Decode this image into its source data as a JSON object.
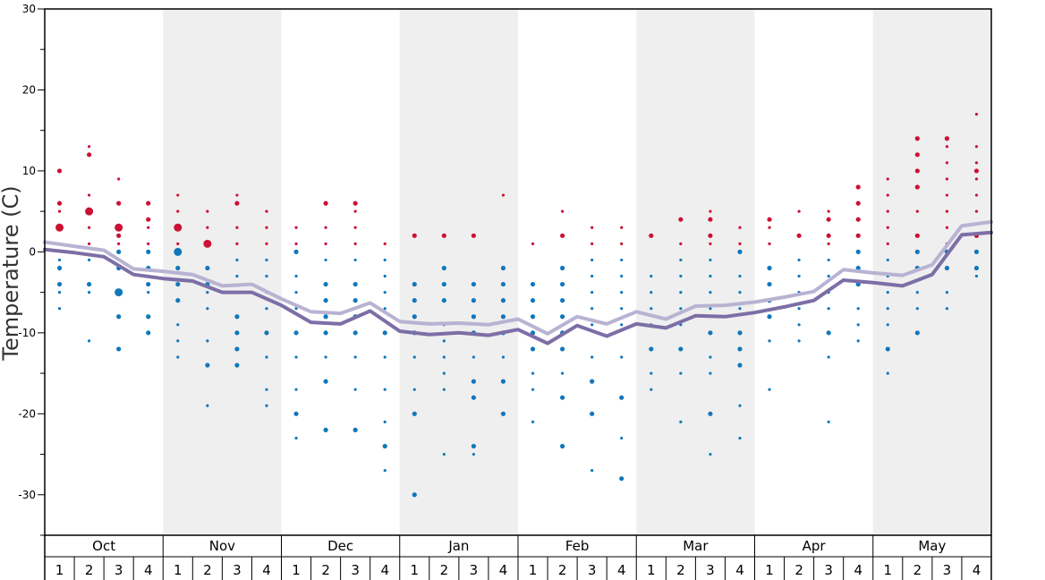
{
  "chart_data": {
    "type": "scatter",
    "ylabel": "Temperature (C)",
    "ylim": [
      -35,
      30
    ],
    "yticks": [
      30,
      20,
      10,
      0,
      -10,
      -20,
      -30
    ],
    "ytick_labels": [
      "30",
      "20",
      "10",
      "0",
      "-10",
      "-20",
      "-30"
    ],
    "months": [
      "Oct",
      "Nov",
      "Dec",
      "Jan",
      "Feb",
      "Mar",
      "Apr",
      "May"
    ],
    "weeks": [
      "1",
      "2",
      "3",
      "4"
    ],
    "shaded_months": [
      "Nov",
      "Jan",
      "Mar",
      "May"
    ],
    "colors": {
      "warm": "#cc1133",
      "cold": "#1177bb",
      "mean_high": "#b8b3d3",
      "mean_low": "#7c6ea6",
      "shade": "#efefef"
    },
    "series": [
      {
        "name": "mean_high",
        "values": [
          1.2,
          0.7,
          0.2,
          -2.1,
          -2.4,
          -2.8,
          -4.2,
          -4.0,
          -5.8,
          -7.4,
          -7.6,
          -6.3,
          -8.6,
          -8.9,
          -8.8,
          -9.0,
          -8.3,
          -10.1,
          -8.0,
          -8.9,
          -7.4,
          -8.3,
          -6.7,
          -6.6,
          -6.2,
          -5.6,
          -4.9,
          -2.2,
          -2.6,
          -2.9,
          -1.6,
          3.2,
          3.7
        ]
      },
      {
        "name": "mean_low",
        "values": [
          0.3,
          -0.1,
          -0.6,
          -2.8,
          -3.3,
          -3.6,
          -5.0,
          -5.0,
          -6.6,
          -8.7,
          -8.9,
          -7.3,
          -9.8,
          -10.2,
          -10.0,
          -10.3,
          -9.6,
          -11.3,
          -9.1,
          -10.4,
          -8.9,
          -9.4,
          -7.9,
          -8.0,
          -7.5,
          -6.8,
          -6.0,
          -3.5,
          -3.8,
          -4.2,
          -2.8,
          2.1,
          2.4
        ]
      },
      {
        "name": "observations",
        "columns": [
          {
            "warm": [
              1,
              3,
              3,
              5,
              6,
              10
            ],
            "cold": [
              -1,
              -2,
              -4,
              -5,
              -7
            ]
          },
          {
            "warm": [
              1,
              3,
              5,
              5,
              7,
              12,
              13
            ],
            "cold": [
              -1,
              -4,
              -5,
              -11
            ]
          },
          {
            "warm": [
              1,
              2,
              3,
              3,
              6,
              9
            ],
            "cold": [
              0,
              -2,
              -5,
              -5,
              -8,
              -12
            ]
          },
          {
            "warm": [
              1,
              3,
              4,
              6
            ],
            "cold": [
              0,
              -2,
              -3,
              -4,
              -5,
              -8,
              -10
            ]
          },
          {
            "warm": [
              1,
              3,
              3,
              5,
              7
            ],
            "cold": [
              0,
              0,
              -2,
              -4,
              -6,
              -9,
              -11,
              -13
            ]
          },
          {
            "warm": [
              1,
              1,
              3,
              5
            ],
            "cold": [
              -2,
              -4,
              -5,
              -7,
              -11,
              -14,
              -19
            ]
          },
          {
            "warm": [
              1,
              3,
              6,
              7
            ],
            "cold": [
              -1,
              -3,
              -5,
              -8,
              -10,
              -12,
              -14
            ]
          },
          {
            "warm": [
              1,
              3,
              5
            ],
            "cold": [
              -1,
              -3,
              -5,
              -7,
              -10,
              -13,
              -17,
              -19
            ]
          },
          {
            "warm": [
              1,
              3
            ],
            "cold": [
              0,
              -3,
              -5,
              -7,
              -10,
              -13,
              -17,
              -20,
              -23
            ]
          },
          {
            "warm": [
              1,
              3,
              6
            ],
            "cold": [
              -1,
              -4,
              -6,
              -8,
              -10,
              -13,
              -16,
              -22
            ]
          },
          {
            "warm": [
              1,
              3,
              5,
              6
            ],
            "cold": [
              -1,
              -4,
              -6,
              -8,
              -10,
              -13,
              -17,
              -22
            ]
          },
          {
            "warm": [
              1
            ],
            "cold": [
              -1,
              -3,
              -5,
              -7,
              -10,
              -13,
              -17,
              -21,
              -24,
              -27
            ]
          },
          {
            "warm": [
              2
            ],
            "cold": [
              -4,
              -6,
              -8,
              -10,
              -13,
              -17,
              -20,
              -30
            ]
          },
          {
            "warm": [
              2
            ],
            "cold": [
              -2,
              -4,
              -6,
              -9,
              -11,
              -13,
              -15,
              -17,
              -25
            ]
          },
          {
            "warm": [
              2
            ],
            "cold": [
              -4,
              -6,
              -8,
              -10,
              -13,
              -16,
              -18,
              -24,
              -25
            ]
          },
          {
            "warm": [
              7
            ],
            "cold": [
              -2,
              -4,
              -6,
              -8,
              -10,
              -13,
              -16,
              -20
            ]
          },
          {
            "warm": [
              1
            ],
            "cold": [
              -4,
              -6,
              -8,
              -10,
              -12,
              -15,
              -17,
              -21
            ]
          },
          {
            "warm": [
              2,
              5
            ],
            "cold": [
              -2,
              -4,
              -6,
              -8,
              -10,
              -12,
              -15,
              -18,
              -24
            ]
          },
          {
            "warm": [
              1,
              3
            ],
            "cold": [
              -1,
              -3,
              -5,
              -7,
              -9,
              -13,
              -16,
              -20,
              -27
            ]
          },
          {
            "warm": [
              1,
              3
            ],
            "cold": [
              -1,
              -3,
              -5,
              -7,
              -9,
              -13,
              -18,
              -23,
              -28
            ]
          },
          {
            "warm": [
              2
            ],
            "cold": [
              -3,
              -5,
              -7,
              -9,
              -12,
              -15,
              -17
            ]
          },
          {
            "warm": [
              1,
              4
            ],
            "cold": [
              -1,
              -3,
              -5,
              -7,
              -9,
              -12,
              -15,
              -21
            ]
          },
          {
            "warm": [
              1,
              2,
              4,
              5
            ],
            "cold": [
              -1,
              -3,
              -5,
              -7,
              -10,
              -13,
              -15,
              -20,
              -25
            ]
          },
          {
            "warm": [
              1,
              3
            ],
            "cold": [
              0,
              -3,
              -5,
              -7,
              -10,
              -12,
              -14,
              -19,
              -23
            ]
          },
          {
            "warm": [
              1,
              3,
              4
            ],
            "cold": [
              -2,
              -4,
              -6,
              -8,
              -11,
              -17
            ]
          },
          {
            "warm": [
              2,
              5
            ],
            "cold": [
              -1,
              -3,
              -5,
              -7,
              -9,
              -11
            ]
          },
          {
            "warm": [
              1,
              2,
              4,
              5
            ],
            "cold": [
              -1,
              -3,
              -5,
              -7,
              -10,
              -13,
              -21
            ]
          },
          {
            "warm": [
              2,
              4,
              6,
              8
            ],
            "cold": [
              0,
              -2,
              -4,
              -7,
              -9,
              -11
            ]
          },
          {
            "warm": [
              1,
              3,
              5,
              7,
              9
            ],
            "cold": [
              -1,
              -3,
              -5,
              -7,
              -9,
              -12,
              -15
            ]
          },
          {
            "warm": [
              2,
              5,
              8,
              10,
              12,
              14
            ],
            "cold": [
              0,
              -2,
              -5,
              -7,
              -10
            ]
          },
          {
            "warm": [
              1,
              3,
              5,
              7,
              9,
              11,
              13,
              14
            ],
            "cold": [
              0,
              -2,
              -5,
              -7
            ]
          },
          {
            "warm": [
              2,
              5,
              7,
              9,
              10,
              11,
              13,
              17
            ],
            "cold": [
              0,
              -2,
              -3
            ]
          }
        ]
      }
    ]
  }
}
